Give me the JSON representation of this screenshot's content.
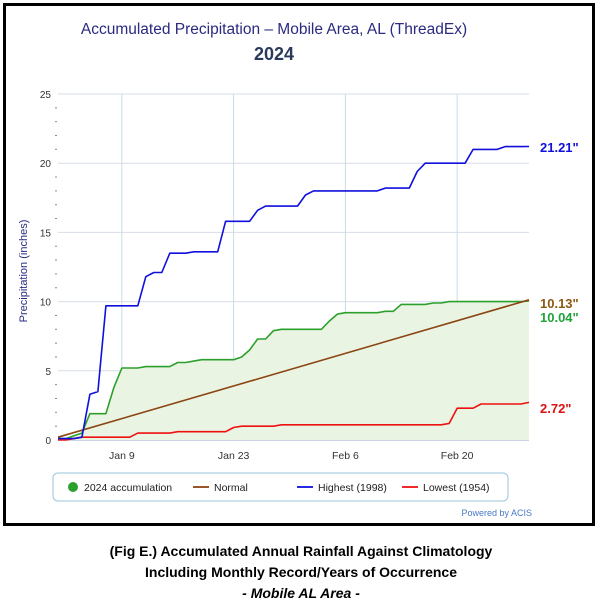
{
  "chart_data": {
    "type": "area",
    "title": "Accumulated Precipitation – Mobile Area, AL (ThreadEx)",
    "subtitle": "2024",
    "ylabel": "Precipitation (inches)",
    "xlabel": "",
    "ylim": [
      0,
      25
    ],
    "yticks": [
      0,
      5,
      10,
      15,
      20,
      25
    ],
    "xlim": [
      1,
      60
    ],
    "xticks": [
      {
        "label": "Jan 9",
        "day": 9
      },
      {
        "label": "Jan 23",
        "day": 23
      },
      {
        "label": "Feb 6",
        "day": 37
      },
      {
        "label": "Feb 20",
        "day": 51
      }
    ],
    "grid": true,
    "legend_position": "bottom",
    "credit": "Powered by ACIS",
    "series": [
      {
        "name": "2024 accumulation",
        "color": "#2ca02c",
        "fill": "#eaf4e2",
        "kind": "area",
        "x": [
          1,
          2,
          3,
          4,
          5,
          6,
          7,
          8,
          9,
          10,
          11,
          12,
          13,
          14,
          15,
          16,
          17,
          18,
          19,
          20,
          21,
          22,
          23,
          24,
          25,
          26,
          27,
          28,
          29,
          30,
          31,
          32,
          33,
          34,
          35,
          36,
          37,
          38,
          39,
          40,
          41,
          42,
          43,
          44,
          45,
          46,
          47,
          48,
          49,
          50,
          51,
          52,
          53,
          54,
          55,
          56,
          57,
          58,
          59,
          60
        ],
        "values": [
          0.1,
          0.1,
          0.3,
          0.5,
          1.9,
          1.9,
          1.9,
          3.8,
          5.2,
          5.2,
          5.2,
          5.3,
          5.3,
          5.3,
          5.3,
          5.6,
          5.6,
          5.7,
          5.8,
          5.8,
          5.8,
          5.8,
          5.8,
          6.0,
          6.5,
          7.3,
          7.3,
          7.9,
          8.0,
          8.0,
          8.0,
          8.0,
          8.0,
          8.0,
          8.6,
          9.1,
          9.2,
          9.2,
          9.2,
          9.2,
          9.2,
          9.3,
          9.3,
          9.8,
          9.8,
          9.8,
          9.8,
          9.9,
          9.9,
          10.0,
          10.0,
          10.0,
          10.0,
          10.0,
          10.0,
          10.0,
          10.0,
          10.0,
          10.0,
          10.04
        ],
        "end_label": "10.04\""
      },
      {
        "name": "Normal",
        "color": "#8b4513",
        "kind": "line",
        "x": [
          1,
          60
        ],
        "values": [
          0.2,
          10.13
        ],
        "end_label": "10.13\""
      },
      {
        "name": "Highest (1998)",
        "color": "#1010dd",
        "kind": "step",
        "x": [
          1,
          2,
          3,
          4,
          5,
          6,
          7,
          8,
          9,
          10,
          11,
          12,
          13,
          14,
          15,
          16,
          17,
          18,
          19,
          20,
          21,
          22,
          23,
          24,
          25,
          26,
          27,
          28,
          29,
          30,
          31,
          32,
          33,
          34,
          35,
          36,
          37,
          38,
          39,
          40,
          41,
          42,
          43,
          44,
          45,
          46,
          47,
          48,
          49,
          50,
          51,
          52,
          53,
          54,
          55,
          56,
          57,
          58,
          59,
          60
        ],
        "values": [
          0.1,
          0.1,
          0.1,
          0.2,
          3.3,
          3.5,
          9.7,
          9.7,
          9.7,
          9.7,
          9.7,
          11.8,
          12.1,
          12.1,
          13.5,
          13.5,
          13.5,
          13.6,
          13.6,
          13.6,
          13.6,
          15.8,
          15.8,
          15.8,
          15.8,
          16.6,
          16.9,
          16.9,
          16.9,
          16.9,
          16.9,
          17.7,
          18.0,
          18.0,
          18.0,
          18.0,
          18.0,
          18.0,
          18.0,
          18.0,
          18.0,
          18.2,
          18.2,
          18.2,
          18.2,
          19.4,
          20.0,
          20.0,
          20.0,
          20.0,
          20.0,
          20.0,
          21.0,
          21.0,
          21.0,
          21.0,
          21.2,
          21.2,
          21.2,
          21.21
        ],
        "end_label": "21.21\""
      },
      {
        "name": "Lowest (1954)",
        "color": "#ee1111",
        "kind": "step",
        "x": [
          1,
          2,
          3,
          4,
          5,
          6,
          7,
          8,
          9,
          10,
          11,
          12,
          13,
          14,
          15,
          16,
          17,
          18,
          19,
          20,
          21,
          22,
          23,
          24,
          25,
          26,
          27,
          28,
          29,
          30,
          31,
          32,
          33,
          34,
          35,
          36,
          37,
          38,
          39,
          40,
          41,
          42,
          43,
          44,
          45,
          46,
          47,
          48,
          49,
          50,
          51,
          52,
          53,
          54,
          55,
          56,
          57,
          58,
          59,
          60
        ],
        "values": [
          0.0,
          0.0,
          0.1,
          0.2,
          0.2,
          0.2,
          0.2,
          0.2,
          0.2,
          0.2,
          0.5,
          0.5,
          0.5,
          0.5,
          0.5,
          0.6,
          0.6,
          0.6,
          0.6,
          0.6,
          0.6,
          0.6,
          0.9,
          1.0,
          1.0,
          1.0,
          1.0,
          1.0,
          1.1,
          1.1,
          1.1,
          1.1,
          1.1,
          1.1,
          1.1,
          1.1,
          1.1,
          1.1,
          1.1,
          1.1,
          1.1,
          1.1,
          1.1,
          1.1,
          1.1,
          1.1,
          1.1,
          1.1,
          1.1,
          1.2,
          2.3,
          2.3,
          2.3,
          2.6,
          2.6,
          2.6,
          2.6,
          2.6,
          2.6,
          2.72
        ],
        "end_label": "2.72\""
      }
    ]
  },
  "legend": {
    "items": [
      {
        "label": "2024 accumulation",
        "color": "#2ca02c",
        "marker": "dot"
      },
      {
        "label": "Normal",
        "color": "#8b4513",
        "marker": "line"
      },
      {
        "label": "Highest (1998)",
        "color": "#1010dd",
        "marker": "line"
      },
      {
        "label": "Lowest (1954)",
        "color": "#ee1111",
        "marker": "line"
      }
    ]
  },
  "caption": {
    "line1": "(Fig E.) Accumulated Annual Rainfall Against  Climatology",
    "line2": "Including Monthly Record/Years of Occurrence",
    "line3": "- Mobile AL Area -"
  }
}
